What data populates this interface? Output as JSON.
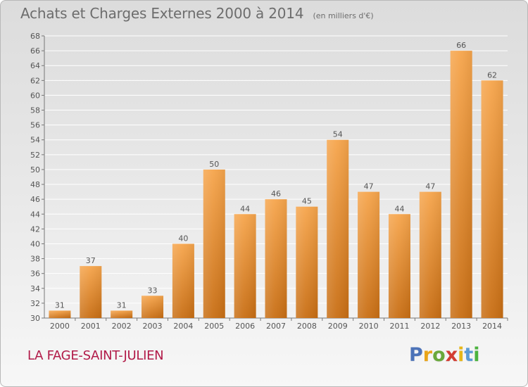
{
  "title": {
    "main": "Achats et Charges Externes 2000 à 2014",
    "unit": "(en milliers d'€)"
  },
  "commune": "LA FAGE-SAINT-JULIEN",
  "brand": {
    "letters": [
      "P",
      "r",
      "o",
      "x",
      "i",
      "t",
      "i"
    ]
  },
  "colors": {
    "bar_top": "#f6a54c",
    "bar_bottom": "#c86e14",
    "grid": "#ffffff",
    "text": "#555555",
    "commune": "#b11a48"
  },
  "chart_data": {
    "type": "bar",
    "categories": [
      "2000",
      "2001",
      "2002",
      "2003",
      "2004",
      "2005",
      "2006",
      "2007",
      "2008",
      "2009",
      "2010",
      "2011",
      "2012",
      "2013",
      "2014"
    ],
    "values": [
      31,
      37,
      31,
      33,
      40,
      50,
      44,
      46,
      45,
      54,
      47,
      44,
      47,
      66,
      62
    ],
    "title": "Achats et Charges Externes 2000 à 2014",
    "subtitle": "(en milliers d'€)",
    "xlabel": "",
    "ylabel": "",
    "ylim": [
      30,
      68
    ],
    "yticks": [
      30,
      32,
      34,
      36,
      38,
      40,
      42,
      44,
      46,
      48,
      50,
      52,
      54,
      56,
      58,
      60,
      62,
      64,
      66,
      68
    ],
    "grid": true,
    "legend": "none"
  }
}
